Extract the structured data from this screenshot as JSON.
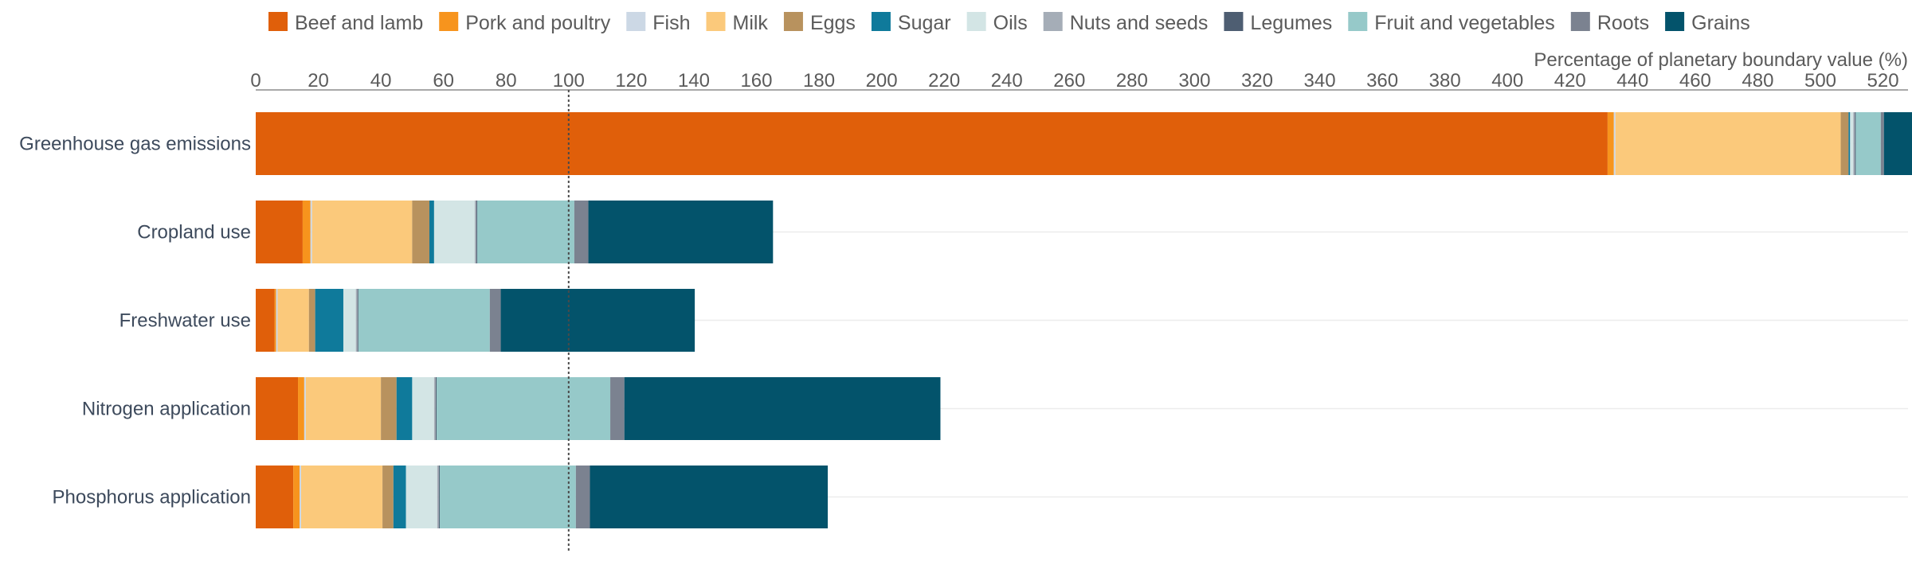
{
  "chart_data": {
    "type": "bar",
    "orientation": "horizontal",
    "stacked": true,
    "xlabel": "Percentage of planetary boundary value (%)",
    "xlim": [
      0,
      528
    ],
    "x_ticks": [
      0,
      20,
      40,
      60,
      80,
      100,
      120,
      140,
      160,
      180,
      200,
      220,
      240,
      260,
      280,
      300,
      320,
      340,
      360,
      380,
      400,
      420,
      440,
      460,
      480,
      500,
      520
    ],
    "reference_line": 100,
    "legend_position": "top",
    "categories": [
      "Greenhouse gas emissions",
      "Cropland use",
      "Freshwater use",
      "Nitrogen application",
      "Phosphorus application"
    ],
    "series": [
      {
        "name": "Beef and lamb",
        "color": "#e05f0a",
        "values": [
          432,
          15,
          6,
          13.5,
          12
        ]
      },
      {
        "name": "Pork and poultry",
        "color": "#f7941d",
        "values": [
          2,
          2.5,
          0.5,
          2,
          2
        ]
      },
      {
        "name": "Fish",
        "color": "#ccd8e5",
        "values": [
          0.5,
          0.5,
          0.5,
          0.5,
          0.5
        ]
      },
      {
        "name": "Milk",
        "color": "#fbc97b",
        "values": [
          72,
          32,
          10,
          24,
          26
        ]
      },
      {
        "name": "Eggs",
        "color": "#b8925e",
        "values": [
          2.5,
          5.5,
          2,
          5,
          3.5
        ]
      },
      {
        "name": "Sugar",
        "color": "#0f7a9b",
        "values": [
          0.5,
          1.5,
          9,
          5,
          4
        ]
      },
      {
        "name": "Oils",
        "color": "#d3e5e5",
        "values": [
          1,
          13,
          4,
          7,
          10
        ]
      },
      {
        "name": "Nuts and seeds",
        "color": "#a5adb7",
        "values": [
          0.5,
          0.5,
          0.5,
          0.5,
          0.5
        ]
      },
      {
        "name": "Legumes",
        "color": "#4e5e72",
        "values": [
          0.3,
          0.3,
          0.3,
          0.3,
          0.3
        ]
      },
      {
        "name": "Fruit and vegetables",
        "color": "#96c9c9",
        "values": [
          8,
          31,
          42,
          55.5,
          43.5
        ]
      },
      {
        "name": "Roots",
        "color": "#7b8290",
        "values": [
          1,
          4.5,
          3.5,
          4.5,
          4.5
        ]
      },
      {
        "name": "Grains",
        "color": "#03536b",
        "values": [
          9,
          59,
          62,
          101,
          76
        ]
      }
    ]
  }
}
